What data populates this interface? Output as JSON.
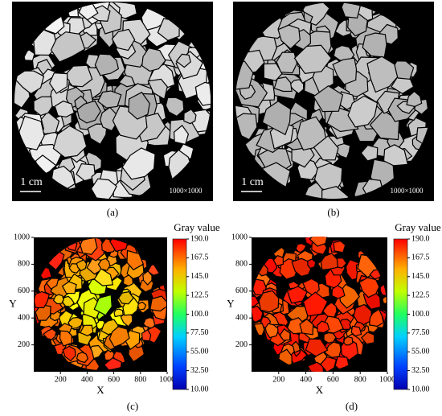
{
  "panels": [
    {
      "label": "(a)",
      "scale_bar": "1 cm",
      "size_note": "1000×1000"
    },
    {
      "label": "(b)",
      "scale_bar": "1 cm",
      "size_note": "1000×1000"
    },
    {
      "label": "(c)",
      "x_label": "X",
      "y_label": "Y",
      "xlim": [
        0,
        1000
      ],
      "ylim": [
        0,
        1000
      ],
      "xticks": [
        200,
        400,
        600,
        800,
        1000
      ],
      "yticks": [
        200,
        400,
        600,
        800,
        1000
      ],
      "colorbar": {
        "title": "Gray value",
        "lim": [
          10,
          190
        ],
        "ticks": [
          {
            "value": 190,
            "label": "190.0"
          },
          167.5,
          {
            "value": 145,
            "label": "145.0"
          },
          122.5,
          {
            "value": 100,
            "label": "100.0"
          },
          {
            "value": 77.5,
            "label": "77.50"
          },
          {
            "value": 55,
            "label": "55.00"
          },
          {
            "value": 32.5,
            "label": "32.50"
          },
          {
            "value": 10,
            "label": "10.00"
          }
        ]
      }
    },
    {
      "label": "(d)",
      "x_label": "X",
      "y_label": "Y",
      "xlim": [
        0,
        1000
      ],
      "ylim": [
        0,
        1000
      ],
      "xticks": [
        200,
        400,
        600,
        800,
        1000
      ],
      "yticks": [
        200,
        400,
        600,
        800,
        1000
      ],
      "colorbar": {
        "title": "Gray value",
        "lim": [
          10,
          190
        ],
        "ticks": [
          {
            "value": 190,
            "label": "190.0"
          },
          167.5,
          {
            "value": 145,
            "label": "145.0"
          },
          122.5,
          {
            "value": 100,
            "label": "100.0"
          },
          {
            "value": 77.5,
            "label": "77.50"
          },
          {
            "value": 55,
            "label": "55.00"
          },
          {
            "value": 32.5,
            "label": "32.50"
          },
          {
            "value": 10,
            "label": "10.00"
          }
        ]
      }
    }
  ]
}
